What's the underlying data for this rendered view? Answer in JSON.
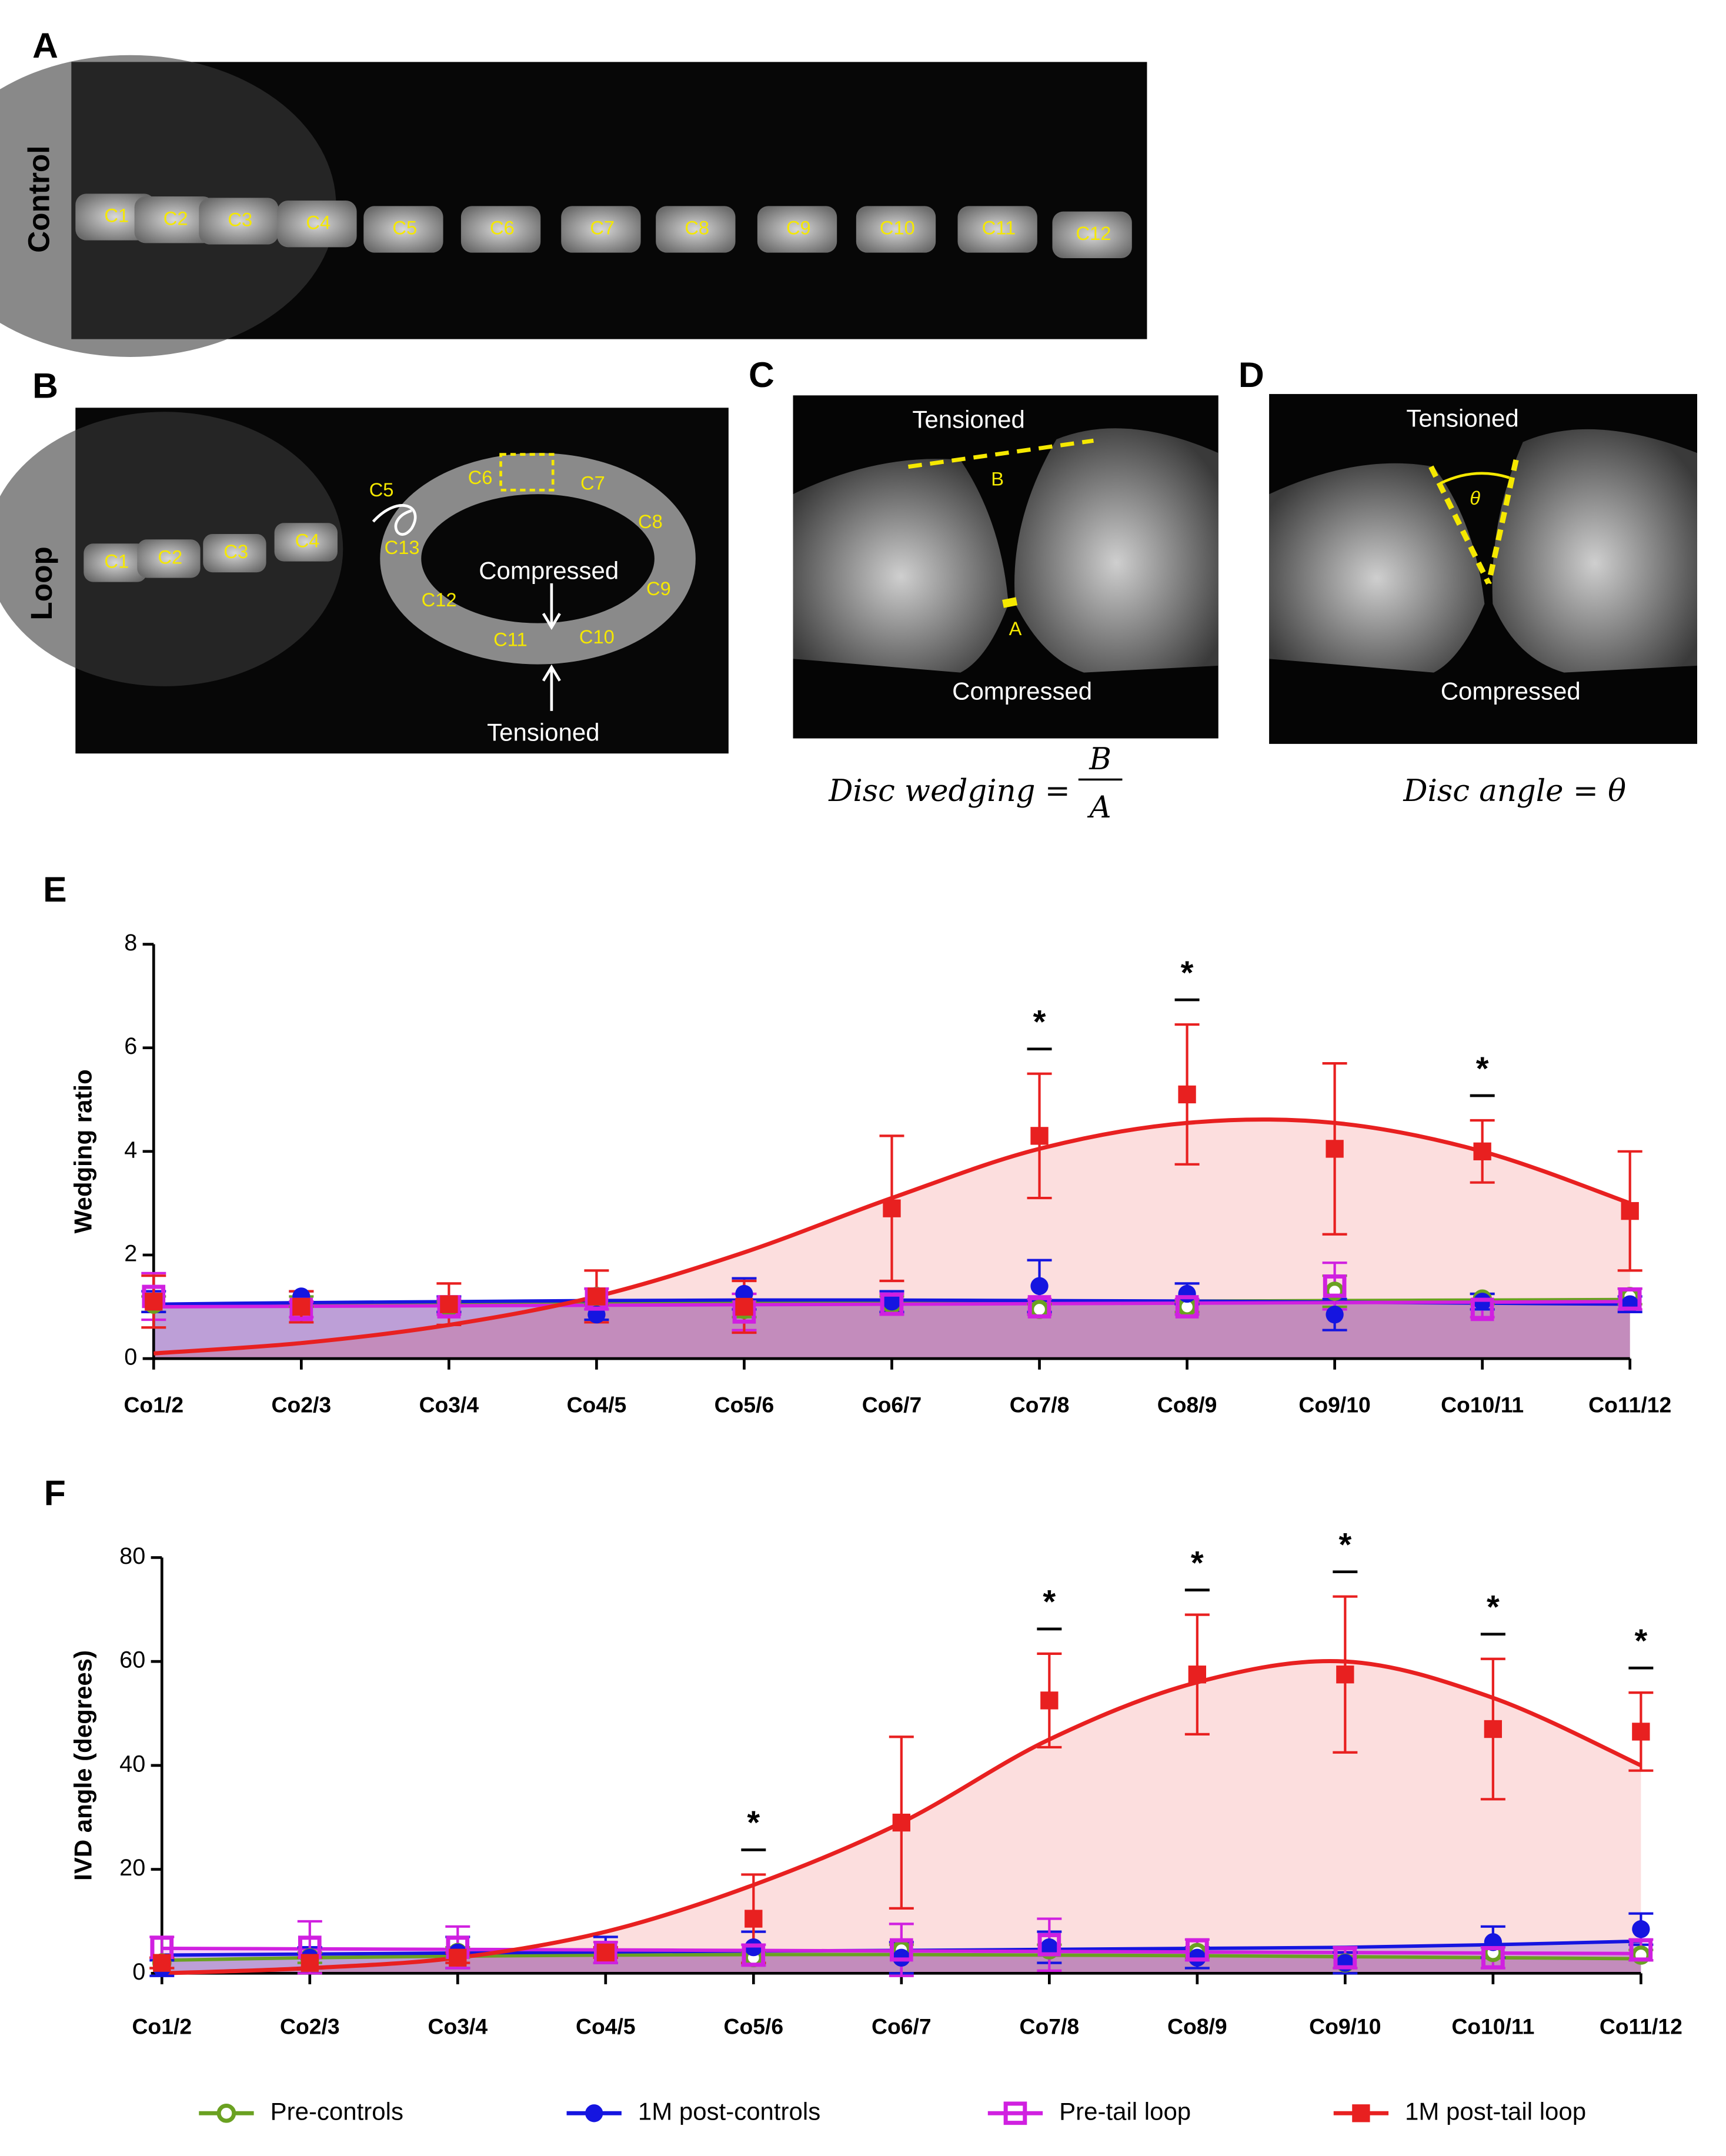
{
  "panels": [
    {
      "label": "A",
      "side_label": "Control",
      "vertebrae": [
        "C1",
        "C2",
        "C3",
        "C4",
        "C5",
        "C6",
        "C7",
        "C8",
        "C9",
        "C10",
        "C11",
        "C12"
      ]
    },
    {
      "label": "B",
      "side_label": "Loop",
      "vertebrae": [
        "C1",
        "C2",
        "C3",
        "C4",
        "C5",
        "C6",
        "C7",
        "C8",
        "C9",
        "C10",
        "C11",
        "C12",
        "C13"
      ],
      "compressed": "Compressed",
      "tensioned": "Tensioned"
    },
    {
      "label": "C",
      "top": "Tensioned",
      "bottom": "Compressed",
      "mark_b": "B",
      "mark_a": "A",
      "formula": "Disc wedging =",
      "numerator": "B",
      "denominator": "A"
    },
    {
      "label": "D",
      "top": "Tensioned",
      "bottom": "Compressed",
      "mark_theta": "θ",
      "formula": "Disc angle =  θ"
    }
  ],
  "chart_data": [
    {
      "type": "line",
      "label": "E",
      "y_label": "Wedging ratio",
      "categories": [
        "Co1/2",
        "Co2/3",
        "Co3/4",
        "Co4/5",
        "Co5/6",
        "Co6/7",
        "Co7/8",
        "Co8/9",
        "Co9/10",
        "Co10/11",
        "Co11/12"
      ],
      "ylim": [
        0,
        8
      ],
      "yticks": [
        0,
        2,
        4,
        6,
        8
      ],
      "series": [
        {
          "name": "Pre-controls",
          "color": "#6aa121",
          "marker": "open-circle",
          "values": [
            1.05,
            1.1,
            1.0,
            1.2,
            0.95,
            1.05,
            0.95,
            1.0,
            1.3,
            1.15,
            1.2
          ],
          "errors": [
            0.15,
            0.1,
            0.1,
            0.15,
            0.15,
            0.15,
            0.1,
            0.1,
            0.3,
            0.1,
            0.15
          ],
          "fit": [
            1.05,
            1.06,
            1.07,
            1.08,
            1.09,
            1.1,
            1.1,
            1.11,
            1.12,
            1.13,
            1.14
          ]
        },
        {
          "name": "1M post-controls",
          "color": "#1515e0",
          "marker": "filled-circle",
          "values": [
            1.1,
            1.2,
            1.05,
            0.85,
            1.25,
            1.1,
            1.4,
            1.25,
            0.85,
            1.1,
            1.05
          ],
          "errors": [
            0.2,
            0.1,
            0.15,
            0.1,
            0.3,
            0.2,
            0.5,
            0.2,
            0.3,
            0.15,
            0.15
          ],
          "fit": [
            1.05,
            1.08,
            1.1,
            1.12,
            1.13,
            1.13,
            1.12,
            1.11,
            1.09,
            1.07,
            1.05
          ]
        },
        {
          "name": "Pre-tail loop",
          "color": "#d020e0",
          "marker": "open-square",
          "values": [
            1.2,
            0.95,
            1.0,
            1.15,
            0.9,
            1.05,
            1.0,
            1.0,
            1.4,
            0.95,
            1.15
          ],
          "errors": [
            0.45,
            0.15,
            0.15,
            0.2,
            0.35,
            0.2,
            0.15,
            0.15,
            0.45,
            0.15,
            0.2
          ],
          "fit": [
            1.0,
            1.01,
            1.02,
            1.03,
            1.04,
            1.05,
            1.06,
            1.07,
            1.08,
            1.09,
            1.1
          ]
        },
        {
          "name": "1M post-tail loop",
          "color": "#e82020",
          "marker": "filled-square",
          "values": [
            1.1,
            1.0,
            1.05,
            1.2,
            1.0,
            2.9,
            4.3,
            5.1,
            4.05,
            4.0,
            2.85
          ],
          "errors": [
            0.5,
            0.3,
            0.4,
            0.5,
            0.5,
            1.4,
            1.2,
            1.35,
            1.65,
            0.6,
            1.15
          ],
          "fit": [
            0.1,
            0.3,
            0.65,
            1.2,
            2.05,
            3.1,
            4.05,
            4.55,
            4.55,
            4.0,
            3.0
          ]
        }
      ],
      "annotations": [
        {
          "text": "*",
          "category": "Co7/8"
        },
        {
          "text": "*",
          "category": "Co8/9"
        },
        {
          "text": "*",
          "category": "Co10/11"
        }
      ]
    },
    {
      "type": "line",
      "label": "F",
      "y_label": "IVD angle (degrees)",
      "categories": [
        "Co1/2",
        "Co2/3",
        "Co3/4",
        "Co4/5",
        "Co5/6",
        "Co6/7",
        "Co7/8",
        "Co8/9",
        "Co9/10",
        "Co10/11",
        "Co11/12"
      ],
      "ylim": [
        0,
        80
      ],
      "yticks": [
        0,
        20,
        40,
        60,
        80
      ],
      "series": [
        {
          "name": "Pre-controls",
          "color": "#6aa121",
          "marker": "open-circle",
          "values": [
            2,
            3,
            4,
            4,
            3,
            4.5,
            4.5,
            4,
            2,
            4,
            3.5
          ],
          "errors": [
            1,
            1,
            1,
            1,
            1,
            1,
            1,
            1,
            1,
            1,
            1
          ],
          "fit": [
            2.5,
            3,
            3.3,
            3.5,
            3.6,
            3.6,
            3.5,
            3.4,
            3.2,
            3,
            2.8
          ]
        },
        {
          "name": "1M post-controls",
          "color": "#1515e0",
          "marker": "filled-circle",
          "values": [
            1,
            3,
            4,
            4.5,
            5,
            3,
            5,
            3,
            2,
            6,
            8.5
          ],
          "errors": [
            1.5,
            2,
            3,
            2.5,
            3,
            3,
            3,
            2,
            2,
            3,
            3
          ],
          "fit": [
            3.5,
            3.7,
            3.9,
            4.1,
            4.3,
            4.4,
            4.6,
            4.8,
            5,
            5.5,
            6.2
          ]
        },
        {
          "name": "Pre-tail loop",
          "color": "#d020e0",
          "marker": "open-square",
          "values": [
            5,
            5,
            5,
            4,
            3.5,
            4.5,
            5.5,
            4.5,
            3,
            3,
            4.5
          ],
          "errors": [
            2,
            5,
            4,
            2,
            2,
            5,
            5,
            2,
            2,
            2,
            2
          ],
          "fit": [
            4.8,
            4.7,
            4.6,
            4.5,
            4.4,
            4.3,
            4.2,
            4.1,
            4,
            3.9,
            3.8
          ]
        },
        {
          "name": "1M post-tail loop",
          "color": "#e82020",
          "marker": "filled-square",
          "values": [
            2,
            2,
            3,
            4,
            10.5,
            29,
            52.5,
            57.5,
            57.5,
            47,
            46.5
          ],
          "errors": [
            1,
            1,
            1,
            1,
            8.5,
            16.5,
            9,
            11.5,
            15,
            13.5,
            7.5
          ],
          "fit": [
            0,
            1,
            3,
            8,
            17,
            29,
            45,
            56,
            60,
            53,
            40
          ]
        }
      ],
      "annotations": [
        {
          "text": "*",
          "category": "Co5/6"
        },
        {
          "text": "*",
          "category": "Co7/8"
        },
        {
          "text": "*",
          "category": "Co8/9"
        },
        {
          "text": "*",
          "category": "Co9/10"
        },
        {
          "text": "*",
          "category": "Co10/11"
        },
        {
          "text": "*",
          "category": "Co11/12"
        }
      ]
    }
  ]
}
